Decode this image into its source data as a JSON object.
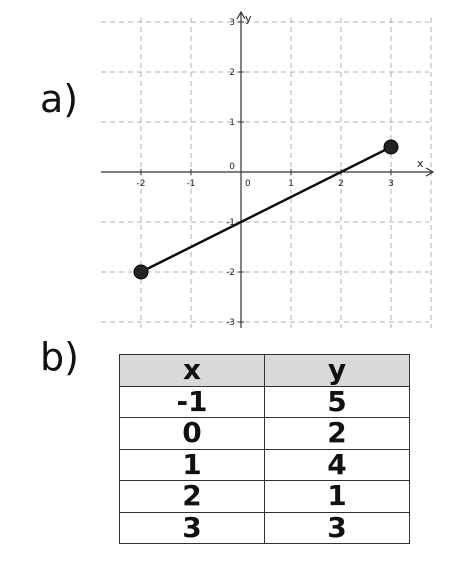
{
  "labels": {
    "a": "a)",
    "b": "b)"
  },
  "chart_data": [
    {
      "type": "line",
      "xlabel": "x",
      "ylabel": "y",
      "xlim": [
        -2.8,
        3.8
      ],
      "ylim": [
        -3,
        3
      ],
      "x_ticks": [
        -2,
        -1,
        0,
        1,
        2,
        3
      ],
      "y_ticks": [
        -3,
        -2,
        -1,
        0,
        1,
        2,
        3
      ],
      "grid": true,
      "series": [
        {
          "x": [
            -2,
            3
          ],
          "y": [
            -2,
            0.5
          ],
          "endpoints": "filled"
        }
      ],
      "colors": {
        "line": "#111111",
        "grid": "#b0b0b0",
        "axis": "#333333"
      }
    },
    {
      "type": "table",
      "headers": [
        "x",
        "y"
      ],
      "rows": [
        [
          "-1",
          "5"
        ],
        [
          "0",
          "2"
        ],
        [
          "1",
          "4"
        ],
        [
          "2",
          "1"
        ],
        [
          "3",
          "3"
        ]
      ],
      "colors": {
        "header_bg": "#d9d9d9",
        "border": "#333333"
      }
    }
  ]
}
